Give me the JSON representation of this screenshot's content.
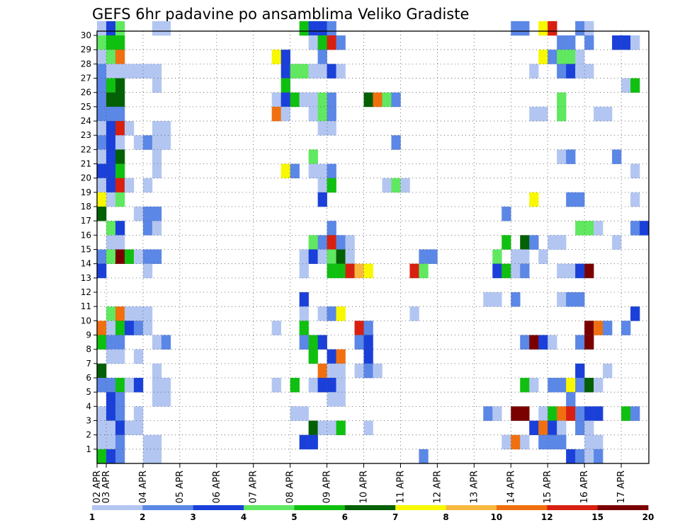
{
  "chart_data": {
    "type": "heatmap",
    "title": "GEFS 6hr padavine po ansamblima Veliko Gradiste",
    "xlabel": "",
    "ylabel": "",
    "x_ticks": [
      "02 APR",
      "03 APR",
      "04 APR",
      "05 APR",
      "06 APR",
      "07 APR",
      "08 APR",
      "09 APR",
      "10 APR",
      "11 APR",
      "12 APR",
      "13 APR",
      "14 APR",
      "15 APR",
      "16 APR",
      "17 APR"
    ],
    "y_ticks": [
      "1",
      "2",
      "3",
      "4",
      "5",
      "6",
      "7",
      "8",
      "9",
      "10",
      "11",
      "12",
      "13",
      "14",
      "15",
      "16",
      "17",
      "18",
      "19",
      "20",
      "21",
      "22",
      "23",
      "24",
      "25",
      "26",
      "27",
      "28",
      "29",
      "30"
    ],
    "x_steps_per_day": 4,
    "n_steps": 60,
    "y_range": [
      0,
      30
    ],
    "grid": true,
    "colorbar": {
      "levels": [
        1,
        2,
        3,
        4,
        5,
        6,
        7,
        8,
        10,
        12,
        15,
        20
      ],
      "labels": [
        "1",
        "2",
        "3",
        "4",
        "5",
        "6",
        "7",
        "8",
        "10",
        "12",
        "15",
        "20"
      ],
      "colors": [
        "#b3c6f2",
        "#5b87e6",
        "#1a40d9",
        "#60e860",
        "#10c010",
        "#046004",
        "#f8f800",
        "#f8b840",
        "#f07010",
        "#d82010",
        "#7a0000"
      ]
    },
    "cells": [
      [
        30,
        0,
        0
      ],
      [
        30,
        1,
        2
      ],
      [
        30,
        2,
        3
      ],
      [
        30,
        6,
        0
      ],
      [
        30,
        7,
        0
      ],
      [
        30,
        22,
        4
      ],
      [
        30,
        23,
        2
      ],
      [
        30,
        24,
        2
      ],
      [
        30,
        25,
        1
      ],
      [
        30,
        45,
        1
      ],
      [
        30,
        46,
        1
      ],
      [
        30,
        48,
        6
      ],
      [
        30,
        49,
        9
      ],
      [
        30,
        52,
        1
      ],
      [
        30,
        53,
        0
      ],
      [
        29,
        0,
        3
      ],
      [
        29,
        1,
        4
      ],
      [
        29,
        2,
        4
      ],
      [
        29,
        23,
        0
      ],
      [
        29,
        24,
        4
      ],
      [
        29,
        25,
        9
      ],
      [
        29,
        26,
        1
      ],
      [
        29,
        50,
        1
      ],
      [
        29,
        51,
        1
      ],
      [
        29,
        53,
        1
      ],
      [
        29,
        56,
        2
      ],
      [
        29,
        57,
        2
      ],
      [
        29,
        58,
        0
      ],
      [
        28,
        0,
        0
      ],
      [
        28,
        1,
        3
      ],
      [
        28,
        2,
        8
      ],
      [
        28,
        19,
        6
      ],
      [
        28,
        20,
        2
      ],
      [
        28,
        24,
        1
      ],
      [
        28,
        48,
        6
      ],
      [
        28,
        49,
        1
      ],
      [
        28,
        50,
        3
      ],
      [
        28,
        51,
        3
      ],
      [
        28,
        52,
        0
      ],
      [
        27,
        0,
        1
      ],
      [
        27,
        1,
        0
      ],
      [
        27,
        2,
        0
      ],
      [
        27,
        3,
        0
      ],
      [
        27,
        4,
        0
      ],
      [
        27,
        5,
        0
      ],
      [
        27,
        6,
        0
      ],
      [
        27,
        20,
        2
      ],
      [
        27,
        21,
        3
      ],
      [
        27,
        22,
        3
      ],
      [
        27,
        23,
        0
      ],
      [
        27,
        24,
        0
      ],
      [
        27,
        25,
        2
      ],
      [
        27,
        26,
        0
      ],
      [
        27,
        47,
        0
      ],
      [
        27,
        50,
        1
      ],
      [
        27,
        51,
        2
      ],
      [
        27,
        52,
        0
      ],
      [
        27,
        53,
        0
      ],
      [
        26,
        0,
        1
      ],
      [
        26,
        1,
        4
      ],
      [
        26,
        2,
        5
      ],
      [
        26,
        6,
        0
      ],
      [
        26,
        20,
        4
      ],
      [
        26,
        57,
        0
      ],
      [
        26,
        58,
        4
      ],
      [
        25,
        0,
        1
      ],
      [
        25,
        1,
        5
      ],
      [
        25,
        2,
        5
      ],
      [
        25,
        19,
        0
      ],
      [
        25,
        20,
        2
      ],
      [
        25,
        21,
        4
      ],
      [
        25,
        22,
        0
      ],
      [
        25,
        23,
        0
      ],
      [
        25,
        24,
        3
      ],
      [
        25,
        25,
        1
      ],
      [
        25,
        29,
        5
      ],
      [
        25,
        30,
        8
      ],
      [
        25,
        31,
        3
      ],
      [
        25,
        32,
        1
      ],
      [
        25,
        50,
        3
      ],
      [
        24,
        0,
        1
      ],
      [
        24,
        1,
        1
      ],
      [
        24,
        2,
        1
      ],
      [
        24,
        19,
        8
      ],
      [
        24,
        20,
        0
      ],
      [
        24,
        23,
        0
      ],
      [
        24,
        24,
        3
      ],
      [
        24,
        25,
        1
      ],
      [
        24,
        47,
        0
      ],
      [
        24,
        48,
        0
      ],
      [
        24,
        50,
        3
      ],
      [
        24,
        54,
        0
      ],
      [
        24,
        55,
        0
      ],
      [
        23,
        0,
        0
      ],
      [
        23,
        1,
        2
      ],
      [
        23,
        2,
        9
      ],
      [
        23,
        3,
        0
      ],
      [
        23,
        6,
        0
      ],
      [
        23,
        7,
        0
      ],
      [
        23,
        24,
        0
      ],
      [
        23,
        25,
        0
      ],
      [
        22,
        0,
        1
      ],
      [
        22,
        1,
        2
      ],
      [
        22,
        2,
        0
      ],
      [
        22,
        4,
        0
      ],
      [
        22,
        5,
        1
      ],
      [
        22,
        6,
        0
      ],
      [
        22,
        7,
        0
      ],
      [
        22,
        32,
        1
      ],
      [
        21,
        0,
        0
      ],
      [
        21,
        1,
        2
      ],
      [
        21,
        2,
        5
      ],
      [
        21,
        6,
        0
      ],
      [
        21,
        23,
        3
      ],
      [
        21,
        50,
        0
      ],
      [
        21,
        51,
        1
      ],
      [
        21,
        56,
        1
      ],
      [
        20,
        0,
        2
      ],
      [
        20,
        1,
        2
      ],
      [
        20,
        2,
        4
      ],
      [
        20,
        6,
        0
      ],
      [
        20,
        20,
        6
      ],
      [
        20,
        21,
        1
      ],
      [
        20,
        23,
        0
      ],
      [
        20,
        24,
        0
      ],
      [
        20,
        25,
        1
      ],
      [
        20,
        58,
        0
      ],
      [
        19,
        0,
        0
      ],
      [
        19,
        1,
        2
      ],
      [
        19,
        2,
        9
      ],
      [
        19,
        3,
        0
      ],
      [
        19,
        5,
        0
      ],
      [
        19,
        24,
        0
      ],
      [
        19,
        25,
        4
      ],
      [
        19,
        31,
        0
      ],
      [
        19,
        32,
        3
      ],
      [
        19,
        33,
        0
      ],
      [
        18,
        0,
        6
      ],
      [
        18,
        1,
        0
      ],
      [
        18,
        2,
        3
      ],
      [
        18,
        24,
        2
      ],
      [
        18,
        47,
        6
      ],
      [
        18,
        51,
        1
      ],
      [
        18,
        52,
        1
      ],
      [
        18,
        58,
        0
      ],
      [
        17,
        0,
        5
      ],
      [
        17,
        4,
        0
      ],
      [
        17,
        5,
        1
      ],
      [
        17,
        6,
        1
      ],
      [
        17,
        44,
        1
      ],
      [
        16,
        1,
        3
      ],
      [
        16,
        2,
        2
      ],
      [
        16,
        5,
        1
      ],
      [
        16,
        6,
        0
      ],
      [
        16,
        25,
        1
      ],
      [
        16,
        52,
        3
      ],
      [
        16,
        53,
        3
      ],
      [
        16,
        54,
        0
      ],
      [
        16,
        58,
        1
      ],
      [
        16,
        59,
        2
      ],
      [
        15,
        1,
        0
      ],
      [
        15,
        2,
        0
      ],
      [
        15,
        23,
        3
      ],
      [
        15,
        24,
        1
      ],
      [
        15,
        25,
        9
      ],
      [
        15,
        26,
        1
      ],
      [
        15,
        27,
        0
      ],
      [
        15,
        44,
        4
      ],
      [
        15,
        46,
        5
      ],
      [
        15,
        47,
        1
      ],
      [
        15,
        49,
        0
      ],
      [
        15,
        50,
        0
      ],
      [
        15,
        56,
        0
      ],
      [
        14,
        0,
        1
      ],
      [
        14,
        1,
        3
      ],
      [
        14,
        2,
        10
      ],
      [
        14,
        3,
        4
      ],
      [
        14,
        4,
        0
      ],
      [
        14,
        5,
        1
      ],
      [
        14,
        6,
        1
      ],
      [
        14,
        22,
        0
      ],
      [
        14,
        23,
        2
      ],
      [
        14,
        24,
        0
      ],
      [
        14,
        25,
        3
      ],
      [
        14,
        26,
        5
      ],
      [
        14,
        27,
        0
      ],
      [
        14,
        35,
        1
      ],
      [
        14,
        36,
        1
      ],
      [
        14,
        43,
        3
      ],
      [
        14,
        45,
        0
      ],
      [
        14,
        46,
        0
      ],
      [
        14,
        48,
        0
      ],
      [
        13,
        0,
        2
      ],
      [
        13,
        5,
        0
      ],
      [
        13,
        22,
        0
      ],
      [
        13,
        25,
        4
      ],
      [
        13,
        26,
        4
      ],
      [
        13,
        27,
        9
      ],
      [
        13,
        28,
        7
      ],
      [
        13,
        29,
        6
      ],
      [
        13,
        34,
        9
      ],
      [
        13,
        35,
        3
      ],
      [
        13,
        43,
        2
      ],
      [
        13,
        44,
        4
      ],
      [
        13,
        45,
        0
      ],
      [
        13,
        46,
        1
      ],
      [
        13,
        50,
        0
      ],
      [
        13,
        51,
        0
      ],
      [
        13,
        52,
        2
      ],
      [
        13,
        53,
        10
      ],
      [
        11,
        22,
        2
      ],
      [
        11,
        42,
        0
      ],
      [
        11,
        43,
        0
      ],
      [
        11,
        45,
        1
      ],
      [
        11,
        50,
        0
      ],
      [
        11,
        51,
        1
      ],
      [
        11,
        52,
        1
      ],
      [
        10,
        1,
        3
      ],
      [
        10,
        2,
        8
      ],
      [
        10,
        3,
        0
      ],
      [
        10,
        4,
        0
      ],
      [
        10,
        5,
        0
      ],
      [
        10,
        22,
        0
      ],
      [
        10,
        24,
        0
      ],
      [
        10,
        25,
        1
      ],
      [
        10,
        26,
        6
      ],
      [
        10,
        34,
        0
      ],
      [
        10,
        58,
        2
      ],
      [
        9,
        0,
        8
      ],
      [
        9,
        1,
        0
      ],
      [
        9,
        2,
        4
      ],
      [
        9,
        3,
        2
      ],
      [
        9,
        4,
        1
      ],
      [
        9,
        5,
        0
      ],
      [
        9,
        19,
        0
      ],
      [
        9,
        22,
        4
      ],
      [
        9,
        28,
        9
      ],
      [
        9,
        29,
        1
      ],
      [
        9,
        53,
        10
      ],
      [
        9,
        54,
        8
      ],
      [
        9,
        55,
        1
      ],
      [
        9,
        57,
        1
      ],
      [
        8,
        0,
        4
      ],
      [
        8,
        1,
        1
      ],
      [
        8,
        2,
        1
      ],
      [
        8,
        6,
        0
      ],
      [
        8,
        7,
        1
      ],
      [
        8,
        22,
        1
      ],
      [
        8,
        23,
        4
      ],
      [
        8,
        24,
        2
      ],
      [
        8,
        28,
        1
      ],
      [
        8,
        29,
        2
      ],
      [
        8,
        46,
        1
      ],
      [
        8,
        47,
        10
      ],
      [
        8,
        48,
        2
      ],
      [
        8,
        49,
        0
      ],
      [
        8,
        52,
        1
      ],
      [
        8,
        53,
        10
      ],
      [
        7,
        1,
        0
      ],
      [
        7,
        2,
        0
      ],
      [
        7,
        4,
        0
      ],
      [
        7,
        23,
        4
      ],
      [
        7,
        25,
        2
      ],
      [
        7,
        26,
        8
      ],
      [
        7,
        29,
        2
      ],
      [
        6,
        0,
        5
      ],
      [
        6,
        6,
        0
      ],
      [
        6,
        24,
        8
      ],
      [
        6,
        25,
        0
      ],
      [
        6,
        26,
        0
      ],
      [
        6,
        28,
        0
      ],
      [
        6,
        29,
        1
      ],
      [
        6,
        30,
        0
      ],
      [
        6,
        52,
        2
      ],
      [
        6,
        55,
        0
      ],
      [
        5,
        0,
        1
      ],
      [
        5,
        1,
        1
      ],
      [
        5,
        2,
        4
      ],
      [
        5,
        3,
        0
      ],
      [
        5,
        4,
        2
      ],
      [
        5,
        6,
        0
      ],
      [
        5,
        7,
        0
      ],
      [
        5,
        19,
        0
      ],
      [
        5,
        21,
        4
      ],
      [
        5,
        23,
        0
      ],
      [
        5,
        24,
        2
      ],
      [
        5,
        25,
        2
      ],
      [
        5,
        26,
        0
      ],
      [
        5,
        46,
        4
      ],
      [
        5,
        47,
        0
      ],
      [
        5,
        49,
        1
      ],
      [
        5,
        50,
        1
      ],
      [
        5,
        51,
        6
      ],
      [
        5,
        52,
        1
      ],
      [
        5,
        53,
        5
      ],
      [
        5,
        54,
        0
      ],
      [
        4,
        1,
        2
      ],
      [
        4,
        2,
        1
      ],
      [
        4,
        6,
        0
      ],
      [
        4,
        7,
        0
      ],
      [
        4,
        25,
        0
      ],
      [
        4,
        26,
        0
      ],
      [
        4,
        51,
        1
      ],
      [
        3,
        0,
        0
      ],
      [
        3,
        1,
        2
      ],
      [
        3,
        2,
        1
      ],
      [
        3,
        4,
        0
      ],
      [
        3,
        21,
        0
      ],
      [
        3,
        22,
        0
      ],
      [
        3,
        42,
        1
      ],
      [
        3,
        43,
        0
      ],
      [
        3,
        45,
        10
      ],
      [
        3,
        46,
        10
      ],
      [
        3,
        48,
        0
      ],
      [
        3,
        49,
        4
      ],
      [
        3,
        50,
        8
      ],
      [
        3,
        51,
        9
      ],
      [
        3,
        52,
        1
      ],
      [
        3,
        53,
        2
      ],
      [
        3,
        54,
        2
      ],
      [
        3,
        57,
        4
      ],
      [
        3,
        58,
        1
      ],
      [
        2,
        0,
        0
      ],
      [
        2,
        1,
        0
      ],
      [
        2,
        2,
        2
      ],
      [
        2,
        3,
        0
      ],
      [
        2,
        4,
        0
      ],
      [
        2,
        23,
        5
      ],
      [
        2,
        24,
        0
      ],
      [
        2,
        25,
        0
      ],
      [
        2,
        26,
        4
      ],
      [
        2,
        29,
        0
      ],
      [
        2,
        47,
        2
      ],
      [
        2,
        48,
        8
      ],
      [
        2,
        49,
        2
      ],
      [
        2,
        50,
        0
      ],
      [
        2,
        52,
        1
      ],
      [
        2,
        53,
        0
      ],
      [
        1,
        0,
        0
      ],
      [
        1,
        1,
        0
      ],
      [
        1,
        2,
        1
      ],
      [
        1,
        5,
        0
      ],
      [
        1,
        6,
        0
      ],
      [
        1,
        22,
        2
      ],
      [
        1,
        23,
        2
      ],
      [
        1,
        44,
        0
      ],
      [
        1,
        45,
        8
      ],
      [
        1,
        46,
        0
      ],
      [
        1,
        48,
        1
      ],
      [
        1,
        49,
        1
      ],
      [
        1,
        50,
        1
      ],
      [
        1,
        53,
        0
      ],
      [
        1,
        54,
        0
      ],
      [
        0,
        0,
        4
      ],
      [
        0,
        1,
        2
      ],
      [
        0,
        2,
        1
      ],
      [
        0,
        5,
        0
      ],
      [
        0,
        6,
        0
      ],
      [
        0,
        35,
        1
      ],
      [
        0,
        51,
        2
      ],
      [
        0,
        52,
        1
      ],
      [
        0,
        53,
        0
      ],
      [
        0,
        54,
        1
      ]
    ]
  }
}
